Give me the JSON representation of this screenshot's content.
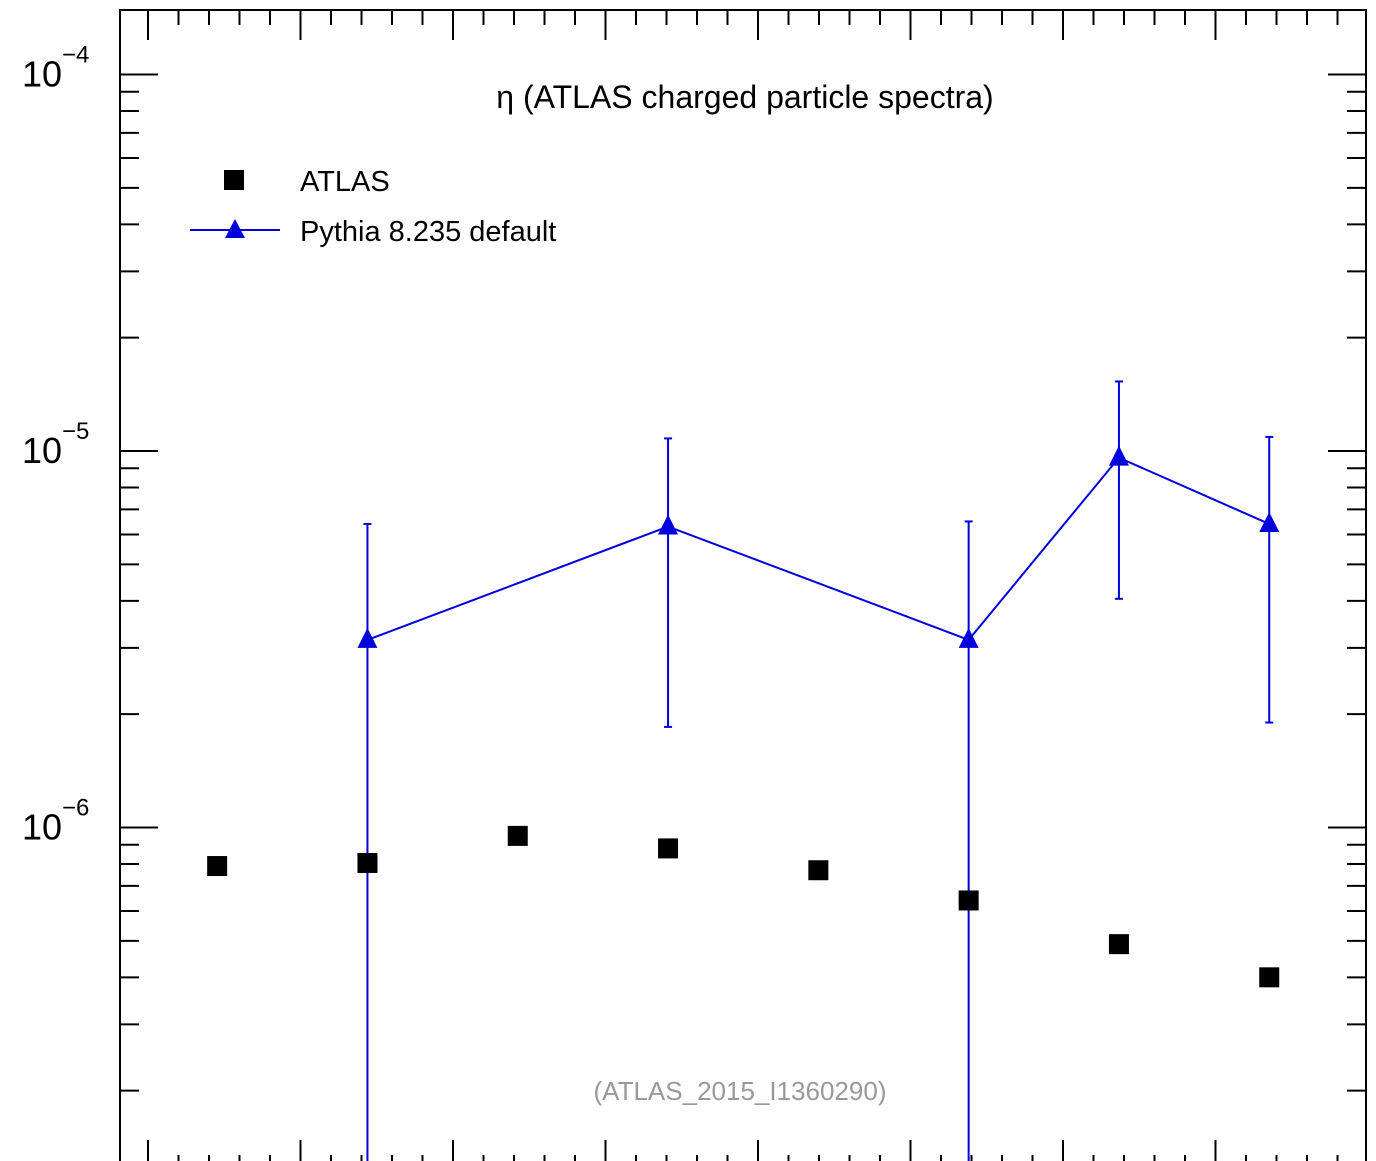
{
  "chart_data": {
    "type": "scatter",
    "title": "η (ATLAS charged particle spectra)",
    "xlabel": "",
    "ylabel": "",
    "y_scale": "log",
    "ylim": [
      1.35e-07,
      0.000155
    ],
    "xlim": [
      0,
      8
    ],
    "y_major_ticks": [
      {
        "value": 1e-06,
        "base": "10",
        "exp": "−6"
      },
      {
        "value": 1e-05,
        "base": "10",
        "exp": "−5"
      },
      {
        "value": 0.0001,
        "base": "10",
        "exp": "−4"
      }
    ],
    "legend": {
      "placement": "top-left"
    },
    "series": [
      {
        "name": "ATLAS",
        "marker": "square",
        "color": "#000000",
        "x": [
          0.5,
          1.5,
          2.5,
          3.5,
          4.5,
          5.5,
          6.5,
          7.5
        ],
        "y": [
          7.9e-07,
          8.05e-07,
          9.5e-07,
          8.8e-07,
          7.7e-07,
          6.4e-07,
          4.9e-07,
          4e-07
        ]
      },
      {
        "name": "Pythia 8.235 default",
        "marker": "triangle",
        "color": "#0000dd",
        "line": true,
        "x": [
          1.5,
          3.5,
          5.5,
          6.5,
          7.5
        ],
        "y": [
          3.15e-06,
          6.3e-06,
          3.15e-06,
          9.6e-06,
          6.4e-06
        ],
        "yerr_low": [
          1e-09,
          1.85e-06,
          1e-09,
          4.05e-06,
          1.9e-06
        ],
        "yerr_high": [
          6.4e-06,
          1.08e-05,
          6.5e-06,
          1.53e-05,
          1.09e-05
        ]
      }
    ],
    "annotation": "(ATLAS_2015_I1360290)"
  }
}
